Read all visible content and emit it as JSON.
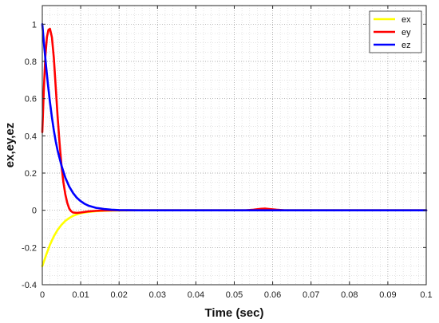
{
  "chart_data": {
    "type": "line",
    "xlabel": "Time (sec)",
    "ylabel": "ex,ey,ez",
    "xlim": [
      0,
      0.1
    ],
    "ylim": [
      -0.4,
      1.1
    ],
    "x_ticks": [
      0,
      0.01,
      0.02,
      0.03,
      0.04,
      0.05,
      0.06,
      0.07,
      0.08,
      0.09,
      0.1
    ],
    "x_tick_labels": [
      "0",
      "0.01",
      "0.02",
      "0.03",
      "0.04",
      "0.05",
      "0.06",
      "0.07",
      "0.08",
      "0.09",
      "0.1"
    ],
    "y_ticks": [
      -0.4,
      -0.2,
      0,
      0.2,
      0.4,
      0.6,
      0.8,
      1
    ],
    "y_tick_labels": [
      "-0.4",
      "-0.2",
      "0",
      "0.2",
      "0.4",
      "0.6",
      "0.8",
      "1"
    ],
    "grid": "major and minor, dotted",
    "legend_position": "top-right",
    "series": [
      {
        "name": "ex",
        "color": "#ffff00",
        "points": [
          [
            0,
            -0.3
          ],
          [
            0.001,
            -0.24
          ],
          [
            0.002,
            -0.185
          ],
          [
            0.003,
            -0.14
          ],
          [
            0.004,
            -0.105
          ],
          [
            0.005,
            -0.078
          ],
          [
            0.006,
            -0.057
          ],
          [
            0.007,
            -0.042
          ],
          [
            0.008,
            -0.03
          ],
          [
            0.009,
            -0.022
          ],
          [
            0.01,
            -0.016
          ],
          [
            0.012,
            -0.009
          ],
          [
            0.014,
            -0.005
          ],
          [
            0.016,
            -0.003
          ],
          [
            0.018,
            -0.0015
          ],
          [
            0.02,
            -0.001
          ],
          [
            0.025,
            0
          ],
          [
            0.1,
            0
          ]
        ]
      },
      {
        "name": "ey",
        "color": "#ff0000",
        "points": [
          [
            0,
            0.42
          ],
          [
            0.0004,
            0.65
          ],
          [
            0.0008,
            0.83
          ],
          [
            0.0012,
            0.93
          ],
          [
            0.0016,
            0.97
          ],
          [
            0.002,
            0.975
          ],
          [
            0.0025,
            0.93
          ],
          [
            0.003,
            0.82
          ],
          [
            0.0035,
            0.66
          ],
          [
            0.004,
            0.5
          ],
          [
            0.0045,
            0.36
          ],
          [
            0.005,
            0.24
          ],
          [
            0.0055,
            0.15
          ],
          [
            0.006,
            0.085
          ],
          [
            0.0065,
            0.04
          ],
          [
            0.007,
            0.01
          ],
          [
            0.0075,
            -0.005
          ],
          [
            0.008,
            -0.012
          ],
          [
            0.009,
            -0.014
          ],
          [
            0.01,
            -0.012
          ],
          [
            0.011,
            -0.009
          ],
          [
            0.012,
            -0.006
          ],
          [
            0.014,
            -0.003
          ],
          [
            0.016,
            -0.001
          ],
          [
            0.018,
            0
          ],
          [
            0.053,
            0
          ],
          [
            0.055,
            0.003
          ],
          [
            0.057,
            0.008
          ],
          [
            0.058,
            0.009
          ],
          [
            0.059,
            0.007
          ],
          [
            0.061,
            0.003
          ],
          [
            0.063,
            0
          ],
          [
            0.1,
            0
          ]
        ]
      },
      {
        "name": "ez",
        "color": "#0000ff",
        "points": [
          [
            0,
            1.0
          ],
          [
            0.0005,
            0.88
          ],
          [
            0.001,
            0.77
          ],
          [
            0.0015,
            0.67
          ],
          [
            0.002,
            0.58
          ],
          [
            0.0025,
            0.5
          ],
          [
            0.003,
            0.43
          ],
          [
            0.0035,
            0.37
          ],
          [
            0.004,
            0.32
          ],
          [
            0.005,
            0.24
          ],
          [
            0.006,
            0.175
          ],
          [
            0.007,
            0.128
          ],
          [
            0.008,
            0.093
          ],
          [
            0.009,
            0.067
          ],
          [
            0.01,
            0.049
          ],
          [
            0.011,
            0.035
          ],
          [
            0.012,
            0.025
          ],
          [
            0.014,
            0.013
          ],
          [
            0.016,
            0.007
          ],
          [
            0.018,
            0.003
          ],
          [
            0.02,
            0.001
          ],
          [
            0.025,
            0
          ],
          [
            0.1,
            0
          ]
        ]
      }
    ]
  }
}
